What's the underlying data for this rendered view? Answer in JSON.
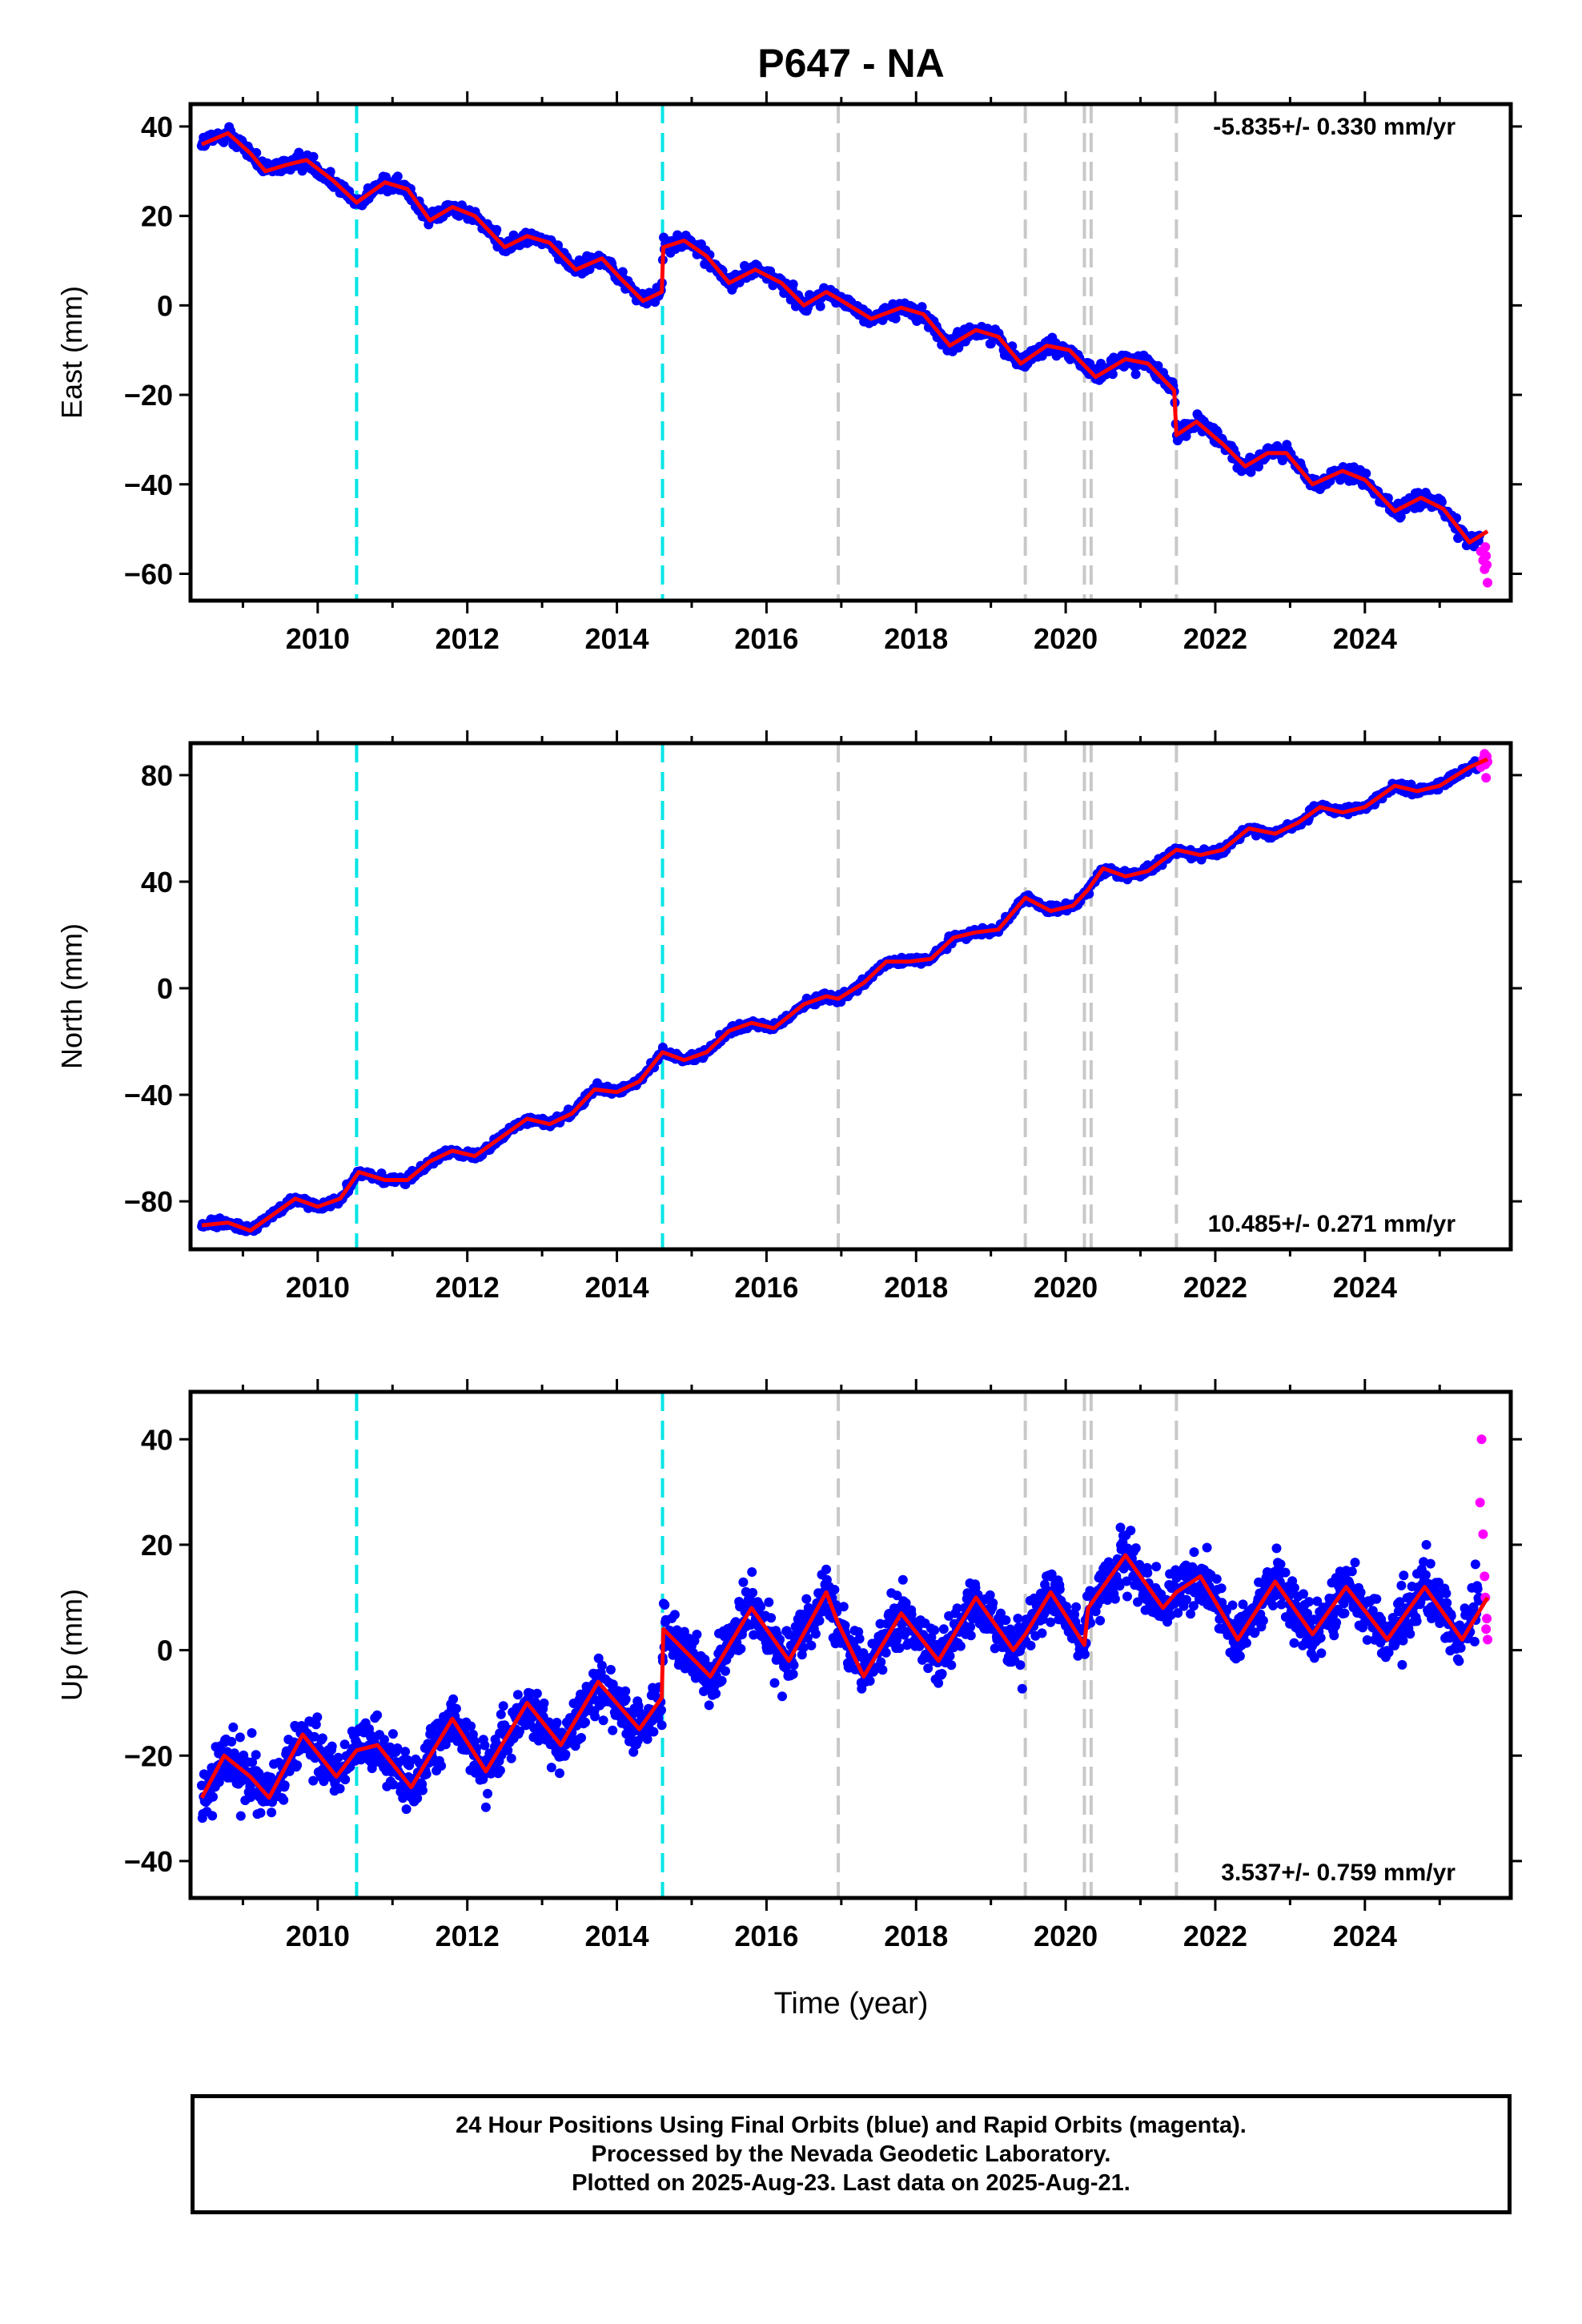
{
  "chart_data": {
    "title": "P647 - NA",
    "type": "scatter",
    "xlabel": "Time (year)",
    "xlim": [
      2008.3,
      2025.95
    ],
    "x_tick_labels": [
      "2010",
      "2012",
      "2014",
      "2016",
      "2018",
      "2020",
      "2022",
      "2024"
    ],
    "x_ticks": [
      2010,
      2012,
      2014,
      2016,
      2018,
      2020,
      2022,
      2024
    ],
    "data_start": 2008.45,
    "data_end": 2025.64,
    "rapid_start": 2025.53,
    "steps": {
      "equipment_change_epochs": [
        2010.52,
        2014.61
      ],
      "other_event_epochs": [
        2016.96,
        2019.46,
        2020.25,
        2020.34,
        2021.48
      ]
    },
    "colors": {
      "final_orbits": "#0000ff",
      "rapid_orbits": "#ff00ff",
      "model": "#ff0000",
      "equipment_change": "#00e5e5",
      "other_event": "#c8c8c8"
    },
    "panels": [
      {
        "component": "East",
        "ylabel": "East (mm)",
        "ylim": [
          -66,
          45
        ],
        "y_ticks": [
          40,
          20,
          0,
          -20,
          -40,
          -60
        ],
        "y_tick_labels": [
          "40",
          "20",
          "0",
          "−20",
          "−40",
          "−60"
        ],
        "velocity_text": "-5.835+/- 0.330 mm/yr",
        "model_points": [
          [
            2008.45,
            36
          ],
          [
            2008.8,
            38.5
          ],
          [
            2009.1,
            34
          ],
          [
            2009.3,
            30
          ],
          [
            2009.6,
            31.5
          ],
          [
            2009.85,
            32.5
          ],
          [
            2010.2,
            28
          ],
          [
            2010.52,
            23
          ],
          [
            2010.9,
            27.5
          ],
          [
            2011.2,
            26
          ],
          [
            2011.5,
            19
          ],
          [
            2011.8,
            22
          ],
          [
            2012.1,
            20
          ],
          [
            2012.5,
            13
          ],
          [
            2012.8,
            15.5
          ],
          [
            2013.1,
            14
          ],
          [
            2013.45,
            8
          ],
          [
            2013.8,
            10.5
          ],
          [
            2014.05,
            6
          ],
          [
            2014.35,
            1
          ],
          [
            2014.6,
            3
          ],
          [
            2014.62,
            13
          ],
          [
            2014.9,
            14.5
          ],
          [
            2015.2,
            11
          ],
          [
            2015.5,
            5
          ],
          [
            2015.85,
            8
          ],
          [
            2016.2,
            5
          ],
          [
            2016.5,
            0
          ],
          [
            2016.8,
            3
          ],
          [
            2016.96,
            1.5
          ],
          [
            2017.4,
            -3
          ],
          [
            2017.8,
            -0.5
          ],
          [
            2018.1,
            -2
          ],
          [
            2018.45,
            -9
          ],
          [
            2018.8,
            -5.5
          ],
          [
            2019.1,
            -7
          ],
          [
            2019.4,
            -13
          ],
          [
            2019.75,
            -9
          ],
          [
            2020.05,
            -10
          ],
          [
            2020.4,
            -16
          ],
          [
            2020.8,
            -12
          ],
          [
            2021.1,
            -13
          ],
          [
            2021.45,
            -19
          ],
          [
            2021.48,
            -29
          ],
          [
            2021.75,
            -26
          ],
          [
            2022.1,
            -31
          ],
          [
            2022.4,
            -36
          ],
          [
            2022.7,
            -33
          ],
          [
            2022.95,
            -33
          ],
          [
            2023.3,
            -40
          ],
          [
            2023.7,
            -37
          ],
          [
            2024.0,
            -39
          ],
          [
            2024.4,
            -46
          ],
          [
            2024.75,
            -43
          ],
          [
            2025.05,
            -45.5
          ],
          [
            2025.4,
            -53
          ],
          [
            2025.64,
            -50.5
          ]
        ],
        "rapid_points": [
          [
            2025.55,
            -55
          ],
          [
            2025.58,
            -57
          ],
          [
            2025.6,
            -59
          ],
          [
            2025.61,
            -54
          ],
          [
            2025.62,
            -56
          ],
          [
            2025.63,
            -58
          ],
          [
            2025.64,
            -62
          ]
        ]
      },
      {
        "component": "North",
        "ylabel": "North (mm)",
        "ylim": [
          -98,
          92
        ],
        "y_ticks": [
          80,
          40,
          0,
          -40,
          -80
        ],
        "y_tick_labels": [
          "80",
          "40",
          "0",
          "−40",
          "−80"
        ],
        "velocity_text": "10.485+/- 0.271 mm/yr",
        "model_points": [
          [
            2008.45,
            -89
          ],
          [
            2008.8,
            -88
          ],
          [
            2009.1,
            -91
          ],
          [
            2009.4,
            -85
          ],
          [
            2009.7,
            -79
          ],
          [
            2010.0,
            -82
          ],
          [
            2010.3,
            -79
          ],
          [
            2010.55,
            -69
          ],
          [
            2010.9,
            -72
          ],
          [
            2011.2,
            -72
          ],
          [
            2011.5,
            -65
          ],
          [
            2011.8,
            -61
          ],
          [
            2012.1,
            -63
          ],
          [
            2012.5,
            -55
          ],
          [
            2012.8,
            -49
          ],
          [
            2013.1,
            -51
          ],
          [
            2013.4,
            -47
          ],
          [
            2013.7,
            -38
          ],
          [
            2014.0,
            -39
          ],
          [
            2014.3,
            -35
          ],
          [
            2014.61,
            -24
          ],
          [
            2014.9,
            -27
          ],
          [
            2015.2,
            -24
          ],
          [
            2015.5,
            -16
          ],
          [
            2015.8,
            -13
          ],
          [
            2016.1,
            -15
          ],
          [
            2016.5,
            -6
          ],
          [
            2016.8,
            -3
          ],
          [
            2016.96,
            -4
          ],
          [
            2017.3,
            2
          ],
          [
            2017.6,
            10
          ],
          [
            2017.9,
            10
          ],
          [
            2018.2,
            11
          ],
          [
            2018.5,
            19
          ],
          [
            2018.8,
            21
          ],
          [
            2019.1,
            22
          ],
          [
            2019.46,
            34
          ],
          [
            2019.8,
            29
          ],
          [
            2020.1,
            31
          ],
          [
            2020.3,
            37
          ],
          [
            2020.5,
            45
          ],
          [
            2020.8,
            42
          ],
          [
            2021.1,
            44
          ],
          [
            2021.48,
            52
          ],
          [
            2021.8,
            50
          ],
          [
            2022.1,
            52
          ],
          [
            2022.45,
            60
          ],
          [
            2022.8,
            58
          ],
          [
            2023.1,
            62
          ],
          [
            2023.4,
            68
          ],
          [
            2023.7,
            66
          ],
          [
            2024.0,
            68
          ],
          [
            2024.4,
            76
          ],
          [
            2024.7,
            74
          ],
          [
            2025.0,
            76
          ],
          [
            2025.4,
            83
          ],
          [
            2025.64,
            86
          ]
        ],
        "rapid_points": [
          [
            2025.55,
            83
          ],
          [
            2025.58,
            86
          ],
          [
            2025.6,
            88
          ],
          [
            2025.61,
            84
          ],
          [
            2025.62,
            79
          ],
          [
            2025.63,
            87
          ],
          [
            2025.64,
            85
          ]
        ]
      },
      {
        "component": "Up",
        "ylabel": "Up (mm)",
        "ylim": [
          -47,
          49
        ],
        "y_ticks": [
          40,
          20,
          0,
          -20,
          -40
        ],
        "y_tick_labels": [
          "40",
          "20",
          "0",
          "−20",
          "−40"
        ],
        "velocity_text": "3.537+/- 0.759 mm/yr",
        "model_points": [
          [
            2008.45,
            -28
          ],
          [
            2008.75,
            -20
          ],
          [
            2009.1,
            -24
          ],
          [
            2009.35,
            -28
          ],
          [
            2009.8,
            -16
          ],
          [
            2010.25,
            -24
          ],
          [
            2010.52,
            -19
          ],
          [
            2010.8,
            -18
          ],
          [
            2011.25,
            -26
          ],
          [
            2011.8,
            -13
          ],
          [
            2012.25,
            -23
          ],
          [
            2012.8,
            -10
          ],
          [
            2013.25,
            -18
          ],
          [
            2013.75,
            -6
          ],
          [
            2014.3,
            -15
          ],
          [
            2014.6,
            -9
          ],
          [
            2014.62,
            4
          ],
          [
            2015.25,
            -5
          ],
          [
            2015.8,
            8
          ],
          [
            2016.3,
            -2
          ],
          [
            2016.8,
            11
          ],
          [
            2016.96,
            5
          ],
          [
            2017.3,
            -5
          ],
          [
            2017.8,
            7
          ],
          [
            2018.3,
            -2
          ],
          [
            2018.8,
            10
          ],
          [
            2019.3,
            0
          ],
          [
            2019.46,
            3
          ],
          [
            2019.8,
            11
          ],
          [
            2020.25,
            1
          ],
          [
            2020.3,
            8
          ],
          [
            2020.8,
            18
          ],
          [
            2021.3,
            8
          ],
          [
            2021.48,
            11
          ],
          [
            2021.8,
            14
          ],
          [
            2022.3,
            2
          ],
          [
            2022.8,
            13
          ],
          [
            2023.3,
            3
          ],
          [
            2023.75,
            12
          ],
          [
            2024.3,
            2
          ],
          [
            2024.8,
            12
          ],
          [
            2025.3,
            2
          ],
          [
            2025.64,
            10
          ]
        ],
        "rapid_points": [
          [
            2025.54,
            28
          ],
          [
            2025.56,
            40
          ],
          [
            2025.58,
            22
          ],
          [
            2025.6,
            14
          ],
          [
            2025.61,
            10
          ],
          [
            2025.62,
            4
          ],
          [
            2025.63,
            6
          ],
          [
            2025.64,
            2
          ]
        ]
      }
    ]
  },
  "footer": {
    "line1": "24 Hour Positions Using Final Orbits (blue) and Rapid Orbits (magenta).",
    "line2": "Processed by the Nevada Geodetic Laboratory.",
    "line3": "Plotted on 2025-Aug-23. Last data on 2025-Aug-21."
  }
}
